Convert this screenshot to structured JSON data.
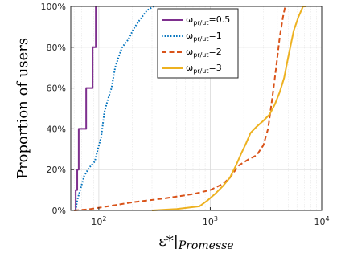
{
  "chart_data": {
    "type": "line",
    "title": "",
    "xlabel": "ε*|Promesse",
    "ylabel": "Proportion of users",
    "x_scale": "log",
    "xlim": [
      56,
      10000
    ],
    "ylim": [
      0,
      100
    ],
    "x_ticks": [
      100,
      1000,
      10000
    ],
    "x_tick_labels": [
      {
        "base": "10",
        "exp": "2"
      },
      {
        "base": "10",
        "exp": "3"
      },
      {
        "base": "10",
        "exp": "4"
      }
    ],
    "y_ticks": [
      0,
      20,
      40,
      60,
      80,
      100
    ],
    "y_tick_labels": [
      "0%",
      "20%",
      "40%",
      "60%",
      "80%",
      "100%"
    ],
    "grid": true,
    "legend_position": "top-left",
    "series": [
      {
        "label": {
          "sym": "ω",
          "sub": "pr/ut",
          "val": "=0.5"
        },
        "color": "#7E2F8E",
        "dash": "solid",
        "points": [
          [
            62,
            0
          ],
          [
            62,
            10
          ],
          [
            64,
            10
          ],
          [
            64,
            20
          ],
          [
            66,
            20
          ],
          [
            66,
            40
          ],
          [
            77,
            40
          ],
          [
            77,
            60
          ],
          [
            88,
            60
          ],
          [
            88,
            80
          ],
          [
            94,
            80
          ],
          [
            94,
            100
          ]
        ]
      },
      {
        "label": {
          "sym": "ω",
          "sub": "pr/ut",
          "val": "=1"
        },
        "color": "#0072BD",
        "dash": "dotted",
        "points": [
          [
            62,
            0
          ],
          [
            64,
            5
          ],
          [
            68,
            10
          ],
          [
            74,
            17
          ],
          [
            82,
            21
          ],
          [
            92,
            24
          ],
          [
            98,
            30
          ],
          [
            105,
            36
          ],
          [
            112,
            48
          ],
          [
            120,
            54
          ],
          [
            130,
            60
          ],
          [
            140,
            70
          ],
          [
            150,
            75
          ],
          [
            162,
            80
          ],
          [
            185,
            84
          ],
          [
            205,
            89
          ],
          [
            230,
            93
          ],
          [
            270,
            98
          ],
          [
            310,
            100
          ]
        ]
      },
      {
        "label": {
          "sym": "ω",
          "sub": "pr/ut",
          "val": "=2"
        },
        "color": "#D95319",
        "dash": "dashed",
        "points": [
          [
            60,
            0
          ],
          [
            80,
            0.5
          ],
          [
            120,
            2
          ],
          [
            200,
            4
          ],
          [
            400,
            6
          ],
          [
            700,
            8
          ],
          [
            1000,
            10
          ],
          [
            1300,
            13
          ],
          [
            1500,
            16
          ],
          [
            1800,
            22
          ],
          [
            2200,
            25
          ],
          [
            2600,
            27
          ],
          [
            3000,
            32
          ],
          [
            3300,
            40
          ],
          [
            3600,
            55
          ],
          [
            3900,
            70
          ],
          [
            4200,
            85
          ],
          [
            4500,
            95
          ],
          [
            4700,
            100
          ]
        ]
      },
      {
        "label": {
          "sym": "ω",
          "sub": "pr/ut",
          "val": "=3"
        },
        "color": "#EDB120",
        "dash": "solid",
        "points": [
          [
            300,
            0
          ],
          [
            500,
            0.7
          ],
          [
            800,
            2
          ],
          [
            950,
            5
          ],
          [
            1100,
            8
          ],
          [
            1300,
            12
          ],
          [
            1500,
            16
          ],
          [
            1700,
            22
          ],
          [
            1900,
            28
          ],
          [
            2100,
            33
          ],
          [
            2300,
            38
          ],
          [
            2600,
            41
          ],
          [
            3000,
            44
          ],
          [
            3400,
            47
          ],
          [
            3800,
            52
          ],
          [
            4200,
            58
          ],
          [
            4600,
            65
          ],
          [
            5000,
            75
          ],
          [
            5600,
            88
          ],
          [
            6200,
            95
          ],
          [
            6800,
            100
          ],
          [
            7200,
            100
          ]
        ]
      }
    ]
  }
}
